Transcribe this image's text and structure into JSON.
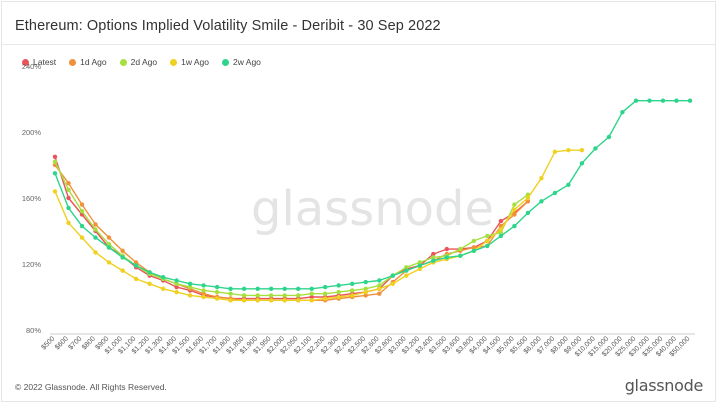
{
  "header": {
    "title": "Ethereum: Options Implied Volatility Smile - Deribit - 30 Sep 2022"
  },
  "footer": {
    "copyright": "© 2022 Glassnode. All Rights Reserved."
  },
  "brand": {
    "logo_text": "glassnode",
    "watermark": "glassnode"
  },
  "chart_data": {
    "type": "line",
    "title": "Ethereum: Options Implied Volatility Smile - Deribit - 30 Sep 2022",
    "xlabel": "",
    "ylabel": "",
    "ylim": [
      80,
      240
    ],
    "y_ticks": [
      80,
      120,
      160,
      200,
      240
    ],
    "y_tick_labels": [
      "80%",
      "120%",
      "160%",
      "200%",
      "240%"
    ],
    "legend_position": "top-left",
    "grid": false,
    "categories": [
      "$500",
      "$600",
      "$700",
      "$800",
      "$900",
      "$1,000",
      "$1,100",
      "$1,200",
      "$1,300",
      "$1,400",
      "$1,500",
      "$1,600",
      "$1,700",
      "$1,800",
      "$1,850",
      "$1,900",
      "$1,950",
      "$2,000",
      "$2,050",
      "$2,100",
      "$2,200",
      "$2,300",
      "$2,400",
      "$2,500",
      "$2,600",
      "$2,800",
      "$3,000",
      "$3,200",
      "$3,400",
      "$3,500",
      "$3,600",
      "$3,800",
      "$4,000",
      "$4,500",
      "$5,000",
      "$5,500",
      "$6,000",
      "$7,000",
      "$8,000",
      "$9,000",
      "$10,000",
      "$15,000",
      "$20,000",
      "$25,000",
      "$30,000",
      "$35,000",
      "$40,000",
      "$50,000"
    ],
    "x_tick_labels": [
      "$500",
      "$600",
      "$700",
      "$800",
      "$900",
      "$1,000",
      "$1,100",
      "$1,200",
      "$1,300",
      "$1,400",
      "$1,500",
      "$1,600",
      "$1,700",
      "$1,800",
      "$1,850",
      "$1,900",
      "$1,950",
      "$2,000",
      "$2,050",
      "$2,100",
      "$2,200",
      "$2,300",
      "$2,400",
      "$2,500",
      "$2,600",
      "$2,800",
      "$3,000",
      "$3,200",
      "$3,400",
      "$3,500",
      "$3,600",
      "$3,800",
      "$4,000",
      "$4,500",
      "$5,000",
      "$5,500",
      "$6,000",
      "$7,000",
      "$8,000",
      "$9,000",
      "$10,000",
      "$15,000",
      "$20,000",
      "$25,000",
      "$30,000",
      "$35,000",
      "$40,000",
      "$50,000"
    ],
    "series": [
      {
        "name": "Latest",
        "color": "#e8545a",
        "values": [
          185,
          160,
          150,
          140,
          130,
          125,
          118,
          113,
          110,
          106,
          104,
          101,
          100,
          99,
          99,
          99,
          99,
          99,
          99,
          100,
          100,
          101,
          102,
          103,
          105,
          113,
          117,
          119,
          126,
          129,
          129,
          130,
          134,
          146,
          151,
          158,
          null,
          null,
          null,
          null,
          null,
          null,
          null,
          null,
          null,
          null,
          null,
          null
        ]
      },
      {
        "name": "1d Ago",
        "color": "#f0913a",
        "values": [
          180,
          169,
          156,
          144,
          136,
          128,
          121,
          115,
          111,
          108,
          105,
          102,
          100,
          99,
          98,
          98,
          98,
          98,
          98,
          98,
          98,
          99,
          100,
          101,
          102,
          109,
          116,
          119,
          122,
          126,
          128,
          130,
          131,
          143,
          150,
          158,
          null,
          null,
          null,
          null,
          null,
          null,
          null,
          null,
          null,
          null,
          null,
          null
        ]
      },
      {
        "name": "2d Ago",
        "color": "#a6e03e",
        "values": [
          182,
          165,
          152,
          141,
          132,
          125,
          119,
          114,
          111,
          108,
          106,
          104,
          103,
          102,
          101,
          101,
          101,
          101,
          101,
          102,
          102,
          103,
          104,
          105,
          107,
          113,
          118,
          121,
          124,
          125,
          129,
          134,
          137,
          139,
          156,
          162,
          null,
          null,
          null,
          null,
          null,
          null,
          null,
          null,
          null,
          null,
          null,
          null
        ]
      },
      {
        "name": "1w Ago",
        "color": "#f0d020",
        "values": [
          164,
          145,
          136,
          127,
          121,
          116,
          111,
          108,
          105,
          103,
          101,
          100,
          99,
          98,
          98,
          98,
          98,
          98,
          98,
          98,
          99,
          100,
          101,
          103,
          105,
          108,
          113,
          117,
          121,
          123,
          125,
          128,
          134,
          141,
          153,
          160,
          172,
          188,
          189,
          189,
          null,
          null,
          null,
          null,
          null,
          null,
          null,
          null
        ]
      },
      {
        "name": "2w Ago",
        "color": "#2dd48c",
        "values": [
          175,
          154,
          143,
          136,
          130,
          124,
          119,
          115,
          112,
          110,
          108,
          107,
          106,
          105,
          105,
          105,
          105,
          105,
          105,
          105,
          106,
          107,
          108,
          109,
          110,
          113,
          116,
          119,
          122,
          124,
          125,
          128,
          131,
          137,
          143,
          151,
          158,
          163,
          168,
          181,
          190,
          197,
          212,
          219,
          219,
          219,
          219,
          219
        ]
      }
    ]
  }
}
